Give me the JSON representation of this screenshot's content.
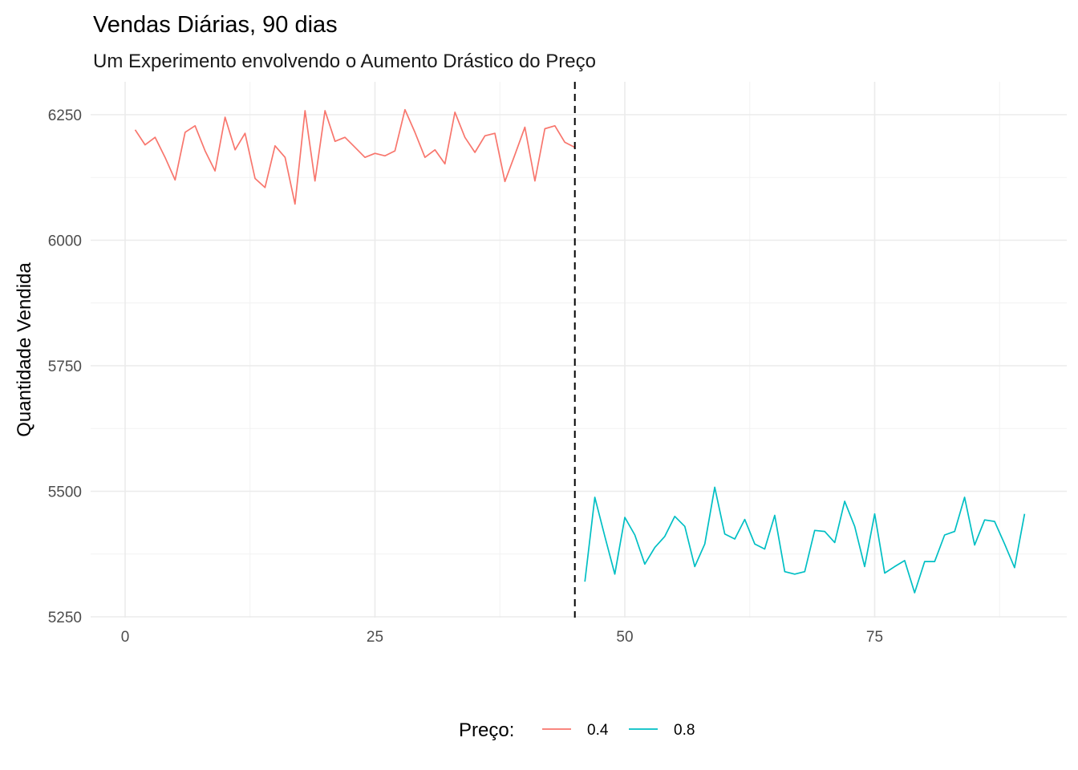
{
  "chart_data": {
    "type": "line",
    "title": "Vendas Diárias, 90 dias",
    "subtitle": "Um Experimento envolvendo o Aumento Drástico do Preço",
    "xlabel": "",
    "ylabel": "Quantidade Vendida",
    "xlim": [
      0,
      90
    ],
    "ylim": [
      5250,
      6250
    ],
    "x_ticks": [
      0,
      25,
      50,
      75
    ],
    "y_ticks": [
      5250,
      5500,
      5750,
      6000,
      6250
    ],
    "grid": true,
    "legend_position": "bottom",
    "legend_title": "Preço:",
    "vline": {
      "x": 45,
      "style": "dashed",
      "color": "#000000"
    },
    "series": [
      {
        "name": "0.4",
        "color": "#F8766D",
        "x": [
          1,
          2,
          3,
          4,
          5,
          6,
          7,
          8,
          9,
          10,
          11,
          12,
          13,
          14,
          15,
          16,
          17,
          18,
          19,
          20,
          21,
          22,
          23,
          24,
          25,
          26,
          27,
          28,
          29,
          30,
          31,
          32,
          33,
          34,
          35,
          36,
          37,
          38,
          39,
          40,
          41,
          42,
          43,
          44,
          45
        ],
        "values": [
          6220,
          6190,
          6205,
          6165,
          6120,
          6215,
          6228,
          6178,
          6138,
          6245,
          6180,
          6213,
          6123,
          6105,
          6188,
          6165,
          6072,
          6258,
          6118,
          6258,
          6197,
          6205,
          6185,
          6165,
          6173,
          6168,
          6178,
          6260,
          6215,
          6165,
          6180,
          6152,
          6255,
          6205,
          6175,
          6208,
          6213,
          6117,
          6170,
          6225,
          6118,
          6222,
          6228,
          6195,
          6185
        ]
      },
      {
        "name": "0.8",
        "color": "#00BFC4",
        "x": [
          46,
          47,
          48,
          49,
          50,
          51,
          52,
          53,
          54,
          55,
          56,
          57,
          58,
          59,
          60,
          61,
          62,
          63,
          64,
          65,
          66,
          67,
          68,
          69,
          70,
          71,
          72,
          73,
          74,
          75,
          76,
          77,
          78,
          79,
          80,
          81,
          82,
          83,
          84,
          85,
          86,
          87,
          88,
          89,
          90
        ],
        "values": [
          5320,
          5488,
          5410,
          5335,
          5448,
          5413,
          5355,
          5388,
          5410,
          5450,
          5430,
          5350,
          5395,
          5508,
          5415,
          5405,
          5444,
          5395,
          5385,
          5452,
          5340,
          5335,
          5340,
          5422,
          5420,
          5398,
          5480,
          5430,
          5350,
          5455,
          5337,
          5350,
          5362,
          5298,
          5360,
          5360,
          5413,
          5420,
          5488,
          5393,
          5443,
          5440,
          5395,
          5348,
          5455
        ]
      }
    ]
  }
}
